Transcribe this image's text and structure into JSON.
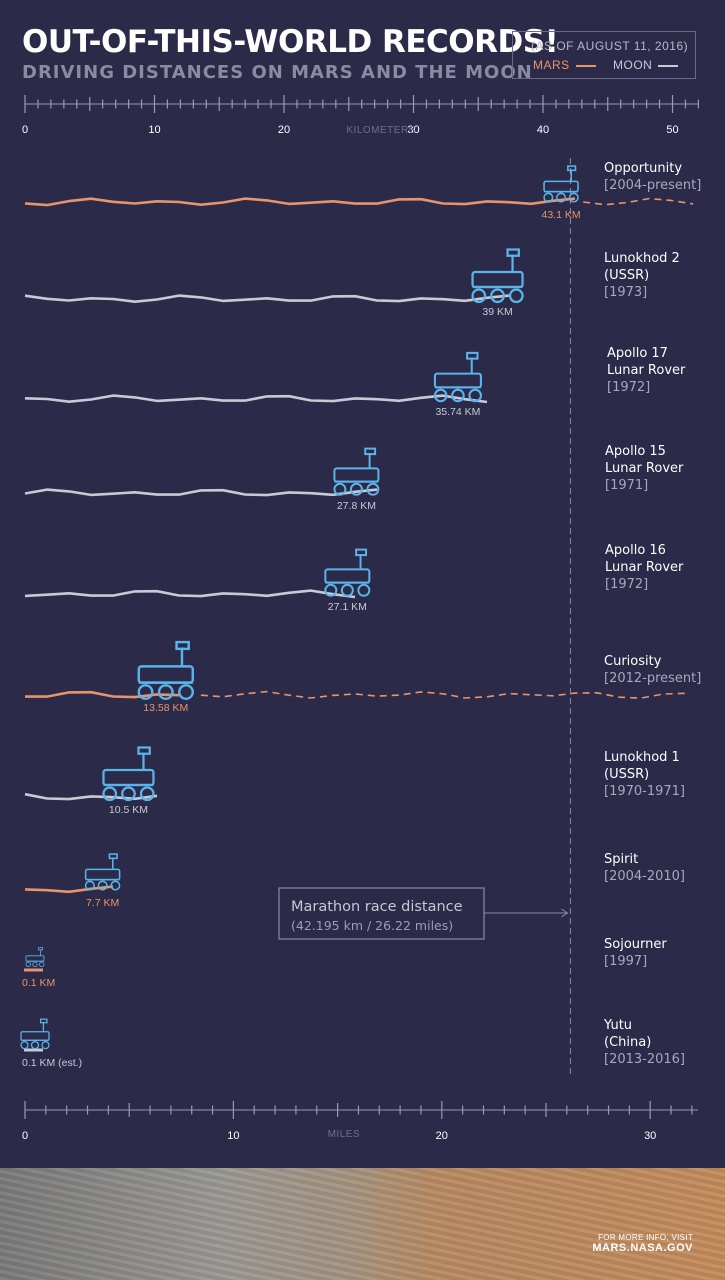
{
  "header": {
    "title": "OUT-OF-THIS-WORLD RECORDS!",
    "subtitle": "DRIVING DISTANCES ON MARS AND THE MOON"
  },
  "legend": {
    "date": "(AS OF AUGUST 11, 2016)",
    "mars_label": "MARS",
    "moon_label": "MOON"
  },
  "colors": {
    "background": "#2b2a48",
    "mars": "#e8946a",
    "moon": "#c9c9d6",
    "rover_icon": "#5ab4ea",
    "axis": "#9a9ab0"
  },
  "chart_data": {
    "type": "bar",
    "x_axis_top": {
      "label": "KILOMETERS",
      "ticks": [
        0,
        10,
        20,
        30,
        40,
        50
      ],
      "range": [
        0,
        52
      ]
    },
    "x_axis_bottom": {
      "label": "MILES",
      "ticks": [
        0,
        10,
        20,
        30
      ],
      "range": [
        0,
        32.3
      ]
    },
    "series": [
      {
        "name": "MARS",
        "color": "#e8946a"
      },
      {
        "name": "MOON",
        "color": "#c9c9d6"
      }
    ],
    "rovers": [
      {
        "name": "Opportunity",
        "name_lines": [
          "Opportunity"
        ],
        "years": "[2004-present]",
        "body": "mars",
        "distance_km": 43.1,
        "label": "43.1 KM",
        "ongoing": true
      },
      {
        "name": "Lunokhod 2",
        "name_lines": [
          "Lunokhod 2",
          "(USSR)"
        ],
        "years": "[1973]",
        "body": "moon",
        "distance_km": 39,
        "label": "39 KM",
        "ongoing": false
      },
      {
        "name": "Apollo 17 Lunar Rover",
        "name_lines": [
          "Apollo 17",
          "Lunar Rover"
        ],
        "years": "[1972]",
        "body": "moon",
        "distance_km": 35.74,
        "label": "35.74 KM",
        "ongoing": false
      },
      {
        "name": "Apollo 15 Lunar Rover",
        "name_lines": [
          "Apollo 15",
          "Lunar Rover"
        ],
        "years": "[1971]",
        "body": "moon",
        "distance_km": 27.8,
        "label": "27.8 KM",
        "ongoing": false
      },
      {
        "name": "Apollo 16 Lunar Rover",
        "name_lines": [
          "Apollo 16",
          "Lunar Rover"
        ],
        "years": "[1972]",
        "body": "moon",
        "distance_km": 27.1,
        "label": "27.1 KM",
        "ongoing": false
      },
      {
        "name": "Curiosity",
        "name_lines": [
          "Curiosity"
        ],
        "years": "[2012-present]",
        "body": "mars",
        "distance_km": 13.58,
        "label": "13.58 KM",
        "ongoing": true
      },
      {
        "name": "Lunokhod 1",
        "name_lines": [
          "Lunokhod 1",
          "(USSR)"
        ],
        "years": "[1970-1971]",
        "body": "moon",
        "distance_km": 10.5,
        "label": "10.5 KM",
        "ongoing": false
      },
      {
        "name": "Spirit",
        "name_lines": [
          "Spirit"
        ],
        "years": "[2004-2010]",
        "body": "mars",
        "distance_km": 7.7,
        "label": "7.7 KM",
        "ongoing": false
      },
      {
        "name": "Sojourner",
        "name_lines": [
          "Sojourner"
        ],
        "years": "[1997]",
        "body": "mars",
        "distance_km": 0.1,
        "label": "0.1 KM",
        "ongoing": false
      },
      {
        "name": "Yutu",
        "name_lines": [
          "Yutu",
          "(China)"
        ],
        "years": "[2013-2016]",
        "body": "moon",
        "distance_km": 0.1,
        "label": "0.1 KM (est.)",
        "ongoing": false
      }
    ],
    "reference_line": {
      "distance_km": 42.195,
      "label": "Marathon race distance",
      "sublabel": "(42.195 km / 26.22 miles)"
    }
  },
  "footer": {
    "info": "FOR MORE INFO, VISIT",
    "url": "MARS.NASA.GOV"
  }
}
